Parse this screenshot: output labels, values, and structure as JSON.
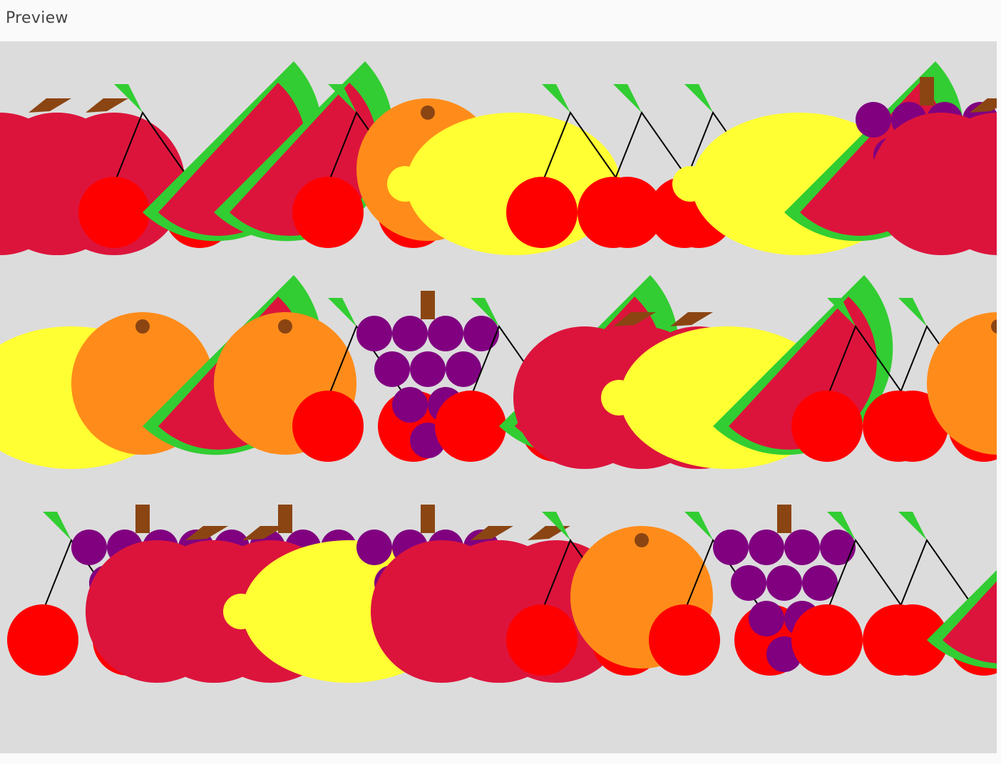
{
  "header": {
    "title": "Preview"
  },
  "colors": {
    "canvas_bg": "#dcdcdc",
    "apple": "#dc143c",
    "apple_stem": "#8b4513",
    "cherry": "#ff0000",
    "cherry_stem": "#000000",
    "leaf": "#32cd32",
    "grape": "#800080",
    "orange": "#ff8c1a",
    "orange_navel": "#8b4513",
    "lemon": "#ffff33",
    "watermelon_flesh": "#dc143c",
    "watermelon_rind": "#32cd32"
  },
  "fruit_rows": [
    [
      "apple",
      "apple",
      "cherry",
      "watermelon",
      "watermelon",
      "cherry",
      "orange",
      "lemon",
      "cherry",
      "cherry",
      "cherry",
      "lemon",
      "watermelon",
      "grapes",
      "apple"
    ],
    [
      "lemon",
      "orange",
      "watermelon",
      "orange",
      "cherry",
      "grapes",
      "cherry",
      "watermelon",
      "apple",
      "apple",
      "lemon",
      "watermelon",
      "cherry",
      "cherry",
      "orange"
    ],
    [
      "cherry",
      "grapes",
      "apple",
      "grapes",
      "apple",
      "lemon",
      "grapes",
      "apple",
      "apple",
      "cherry",
      "orange",
      "cherry",
      "grapes",
      "cherry",
      "cherry",
      "watermelon"
    ]
  ]
}
